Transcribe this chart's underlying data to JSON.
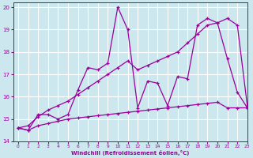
{
  "background_color": "#cce8ee",
  "grid_color": "#ffffff",
  "line_color": "#990099",
  "xlabel": "Windchill (Refroidissement éolien,°C)",
  "xlim": [
    -0.5,
    23
  ],
  "ylim": [
    14,
    20.2
  ],
  "yticks": [
    14,
    15,
    16,
    17,
    18,
    19,
    20
  ],
  "xticks": [
    0,
    1,
    2,
    3,
    4,
    5,
    6,
    7,
    8,
    9,
    10,
    11,
    12,
    13,
    14,
    15,
    16,
    17,
    18,
    19,
    20,
    21,
    22,
    23
  ],
  "series1_x": [
    0,
    1,
    2,
    3,
    4,
    5,
    6,
    7,
    8,
    9,
    10,
    11,
    12,
    13,
    14,
    15,
    16,
    17,
    18,
    19,
    20,
    21,
    22,
    23
  ],
  "series1_y": [
    14.6,
    14.5,
    15.2,
    15.2,
    15.0,
    15.2,
    16.3,
    17.3,
    17.2,
    17.5,
    20.0,
    19.0,
    15.5,
    16.7,
    16.6,
    15.6,
    16.9,
    16.8,
    19.2,
    19.5,
    19.3,
    17.7,
    16.2,
    15.5
  ],
  "series2_x": [
    0,
    1,
    2,
    3,
    4,
    5,
    6,
    7,
    8,
    9,
    10,
    11,
    12,
    13,
    14,
    15,
    16,
    17,
    18,
    19,
    20,
    21,
    22,
    23
  ],
  "series2_y": [
    14.6,
    14.7,
    15.1,
    15.4,
    15.6,
    15.8,
    16.1,
    16.4,
    16.7,
    17.0,
    17.3,
    17.6,
    17.2,
    17.4,
    17.6,
    17.8,
    18.0,
    18.4,
    18.8,
    19.2,
    19.3,
    19.5,
    19.2,
    15.6
  ],
  "series3_x": [
    0,
    1,
    2,
    3,
    4,
    5,
    6,
    7,
    8,
    9,
    10,
    11,
    12,
    13,
    14,
    15,
    16,
    17,
    18,
    19,
    20,
    21,
    22,
    23
  ],
  "series3_y": [
    14.6,
    14.5,
    14.7,
    14.8,
    14.9,
    15.0,
    15.05,
    15.1,
    15.15,
    15.2,
    15.25,
    15.3,
    15.35,
    15.4,
    15.45,
    15.5,
    15.55,
    15.6,
    15.65,
    15.7,
    15.75,
    15.5,
    15.5,
    15.5
  ]
}
